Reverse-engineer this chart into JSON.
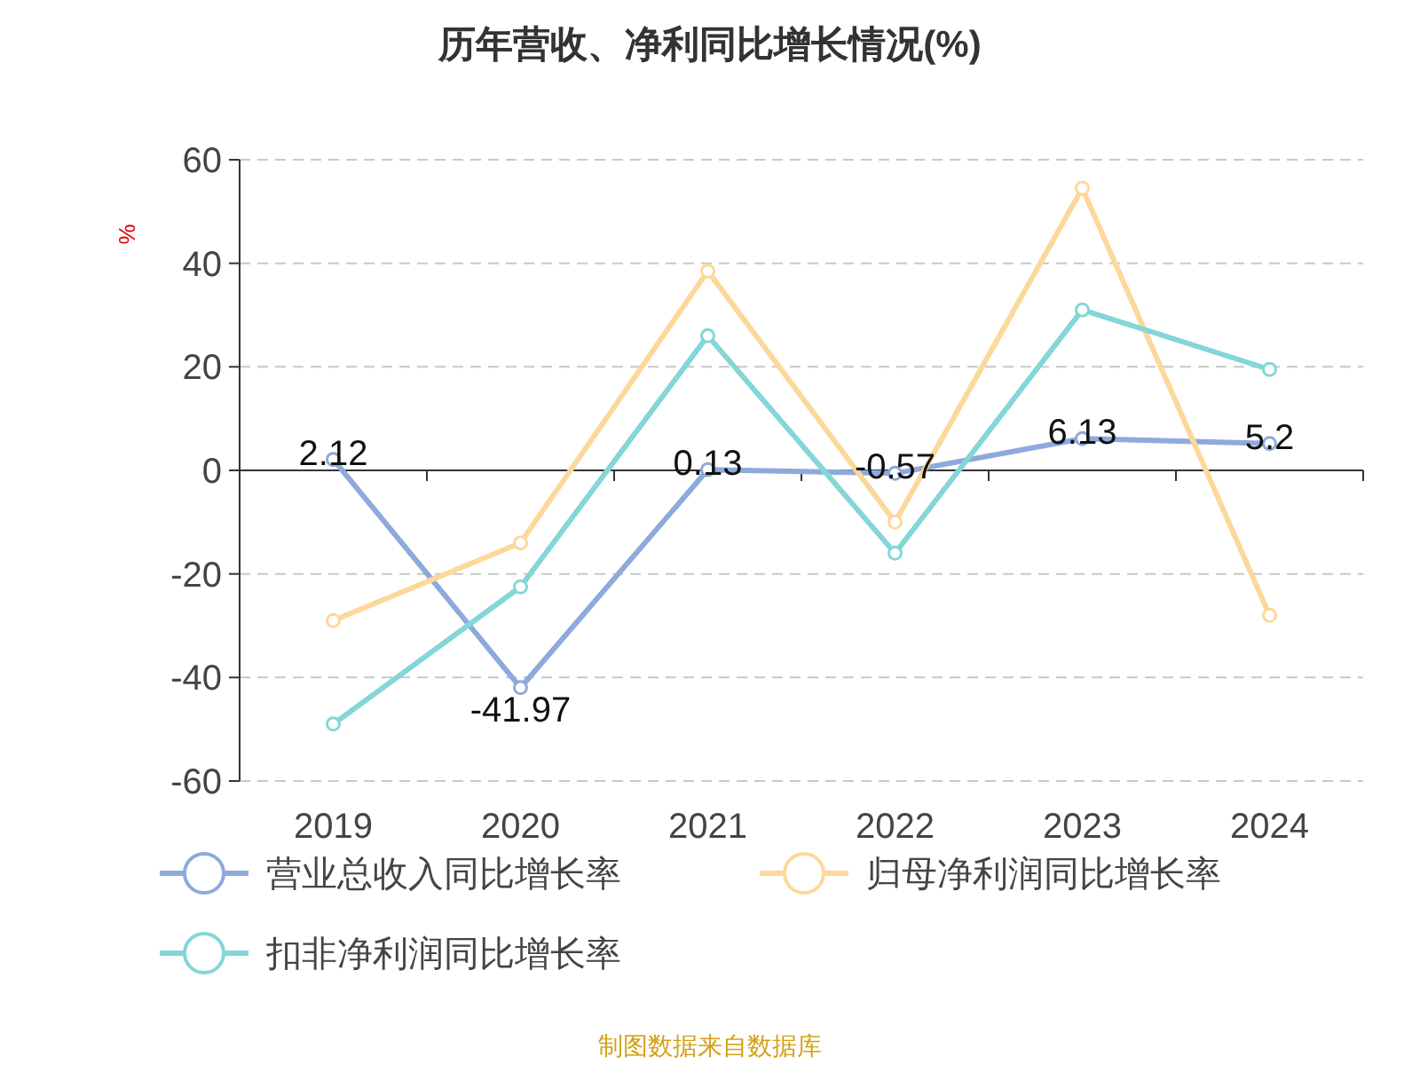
{
  "chart_data": {
    "type": "line",
    "title": "历年营收、净利同比增长情况(%)",
    "ylabel": "%",
    "categories": [
      "2019",
      "2020",
      "2021",
      "2022",
      "2023",
      "2024"
    ],
    "series": [
      {
        "name": "营业总收入同比增长率",
        "color": "#8eaadb",
        "values": [
          2.12,
          -41.97,
          0.13,
          -0.57,
          6.13,
          5.2
        ],
        "value_labels": [
          "2.12",
          "-41.97",
          "0.13",
          "-0.57",
          "6.13",
          "5.2"
        ]
      },
      {
        "name": "归母净利润同比增长率",
        "color": "#fdd89b",
        "values": [
          -29,
          -14,
          38.5,
          -10,
          54.5,
          -28
        ]
      },
      {
        "name": "扣非净利润同比增长率",
        "color": "#84d6d8",
        "values": [
          -49,
          -22.5,
          26,
          -16,
          31,
          19.5
        ]
      }
    ],
    "ylim": [
      -60,
      60
    ],
    "yticks": [
      -60,
      -40,
      -20,
      0,
      20,
      40,
      60
    ],
    "grid": "y",
    "legend": "bottom",
    "marker": "circle",
    "line_style": "solid",
    "annotations": [
      "制图数据来自数据库"
    ]
  }
}
